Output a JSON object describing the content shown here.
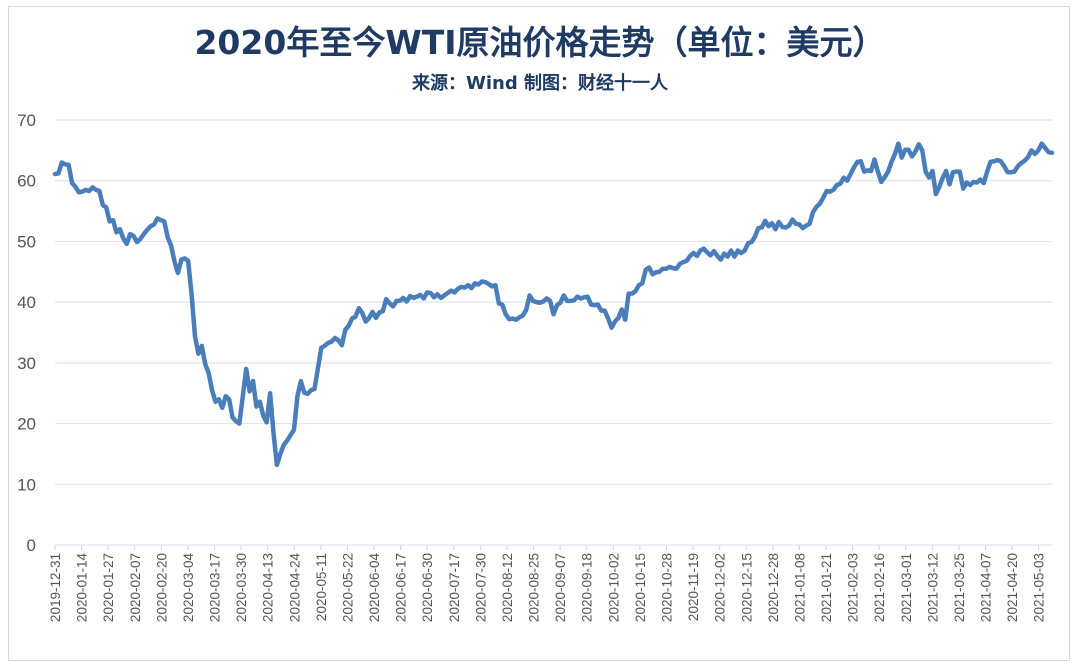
{
  "chart_data": {
    "type": "line",
    "title": "2020年至今WTI原油价格走势（单位：美元）",
    "subtitle": "来源：Wind  制图：财经十一人",
    "xlabel": "",
    "ylabel": "",
    "ylim": [
      0,
      70
    ],
    "yticks": [
      0,
      10,
      20,
      30,
      40,
      50,
      60,
      70
    ],
    "grid": true,
    "line_color": "#4a7ebb",
    "xticks": [
      "2019-12-31",
      "2020-01-14",
      "2020-01-27",
      "2020-02-07",
      "2020-02-20",
      "2020-03-04",
      "2020-03-17",
      "2020-03-30",
      "2020-04-13",
      "2020-04-24",
      "2020-05-11",
      "2020-05-22",
      "2020-06-04",
      "2020-06-17",
      "2020-06-30",
      "2020-07-17",
      "2020-07-30",
      "2020-08-12",
      "2020-08-25",
      "2020-09-07",
      "2020-09-18",
      "2020-10-02",
      "2020-10-15",
      "2020-10-28",
      "2020-11-19",
      "2020-12-02",
      "2020-12-15",
      "2020-12-28",
      "2021-01-08",
      "2021-01-21",
      "2021-02-03",
      "2021-02-16",
      "2021-03-01",
      "2021-03-12",
      "2021-03-25",
      "2021-04-07",
      "2021-04-20",
      "2021-05-03"
    ],
    "series": [
      {
        "values": [
          61.1,
          61.2,
          63.0,
          62.7,
          62.6,
          59.6,
          59.0,
          58.1,
          58.2,
          58.5,
          58.3,
          58.9,
          58.5,
          58.3,
          56.0,
          55.6,
          53.3,
          53.5,
          51.5,
          52.0,
          50.5,
          49.6,
          51.2,
          50.9,
          49.9,
          50.4,
          51.2,
          51.9,
          52.5,
          52.8,
          53.8,
          53.5,
          53.3,
          50.7,
          49.3,
          46.7,
          44.8,
          47.0,
          47.2,
          46.8,
          41.3,
          34.4,
          31.5,
          32.8,
          29.8,
          28.3,
          25.5,
          23.6,
          24.0,
          22.6,
          24.5,
          24.0,
          21.0,
          20.4,
          20.0,
          24.5,
          29.0,
          25.3,
          27.0,
          22.8,
          23.6,
          21.3,
          20.2,
          25.0,
          18.4,
          13.2,
          15.0,
          16.5,
          17.2,
          18.1,
          19.0,
          24.5,
          27.0,
          25.1,
          24.9,
          25.5,
          25.7,
          29.1,
          32.5,
          32.8,
          33.3,
          33.5,
          34.1,
          33.7,
          32.9,
          35.4,
          36.1,
          37.3,
          37.6,
          39.0,
          38.2,
          36.8,
          37.4,
          38.4,
          37.4,
          38.3,
          38.5,
          40.5,
          39.8,
          39.3,
          40.2,
          40.2,
          40.7,
          40.1,
          41.0,
          40.7,
          40.9,
          41.2,
          40.6,
          41.6,
          41.5,
          40.8,
          41.3,
          40.7,
          41.1,
          41.5,
          41.9,
          41.6,
          42.2,
          42.5,
          42.4,
          42.8,
          42.3,
          43.1,
          42.9,
          43.4,
          43.3,
          43.0,
          42.6,
          42.8,
          39.8,
          39.6,
          38.0,
          37.2,
          37.3,
          37.1,
          37.5,
          37.8,
          38.7,
          41.1,
          40.2,
          40.0,
          39.9,
          40.1,
          40.6,
          40.2,
          38.0,
          39.5,
          39.9,
          41.1,
          40.2,
          40.2,
          40.3,
          40.9,
          40.6,
          40.8,
          40.9,
          39.6,
          39.5,
          39.6,
          38.6,
          38.6,
          37.3,
          35.8,
          36.8,
          37.4,
          38.8,
          37.1,
          41.4,
          41.4,
          41.8,
          42.8,
          43.1,
          45.3,
          45.7,
          44.6,
          44.9,
          45.0,
          45.5,
          45.5,
          45.8,
          45.6,
          45.5,
          46.3,
          46.6,
          46.8,
          47.6,
          48.1,
          47.6,
          48.5,
          48.8,
          48.2,
          47.7,
          48.4,
          47.6,
          47.0,
          48.0,
          47.5,
          48.5,
          47.5,
          48.5,
          48.1,
          48.5,
          49.7,
          49.9,
          50.8,
          52.2,
          52.3,
          53.4,
          52.5,
          53.0,
          52.0,
          53.2,
          52.4,
          52.3,
          52.6,
          53.6,
          52.9,
          52.8,
          52.2,
          52.6,
          52.9,
          54.8,
          55.7,
          56.2,
          57.2,
          58.3,
          58.2,
          58.5,
          59.3,
          59.5,
          60.5,
          60.0,
          61.1,
          62.2,
          63.1,
          63.2,
          61.5,
          61.7,
          61.6,
          63.5,
          61.5,
          59.8,
          60.6,
          61.5,
          63.1,
          64.4,
          66.1,
          63.8,
          65.1,
          65.1,
          64.0,
          64.8,
          66.0,
          65.0,
          61.5,
          60.5,
          61.6,
          57.8,
          59.0,
          60.5,
          61.6,
          59.4,
          61.4,
          61.5,
          61.5,
          58.7,
          59.7,
          59.3,
          59.8,
          59.7,
          60.2,
          59.6,
          61.5,
          63.1,
          63.2,
          63.4,
          63.2,
          62.4,
          61.4,
          61.4,
          61.5,
          62.4,
          62.9,
          63.3,
          63.9,
          65.0,
          64.4,
          65.0,
          66.1,
          65.4,
          64.7,
          64.6
        ]
      }
    ]
  }
}
